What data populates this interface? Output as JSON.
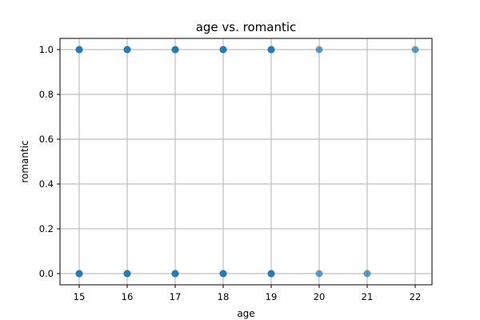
{
  "chart_data": {
    "type": "scatter",
    "title": "age vs. romantic",
    "xlabel": "age",
    "ylabel": "romantic",
    "xlim": [
      14.6,
      22.35
    ],
    "ylim": [
      -0.05,
      1.05
    ],
    "xticks": [
      15,
      16,
      17,
      18,
      19,
      20,
      21,
      22
    ],
    "yticks": [
      0.0,
      0.2,
      0.4,
      0.6,
      0.8,
      1.0
    ],
    "ytick_labels": [
      "0.0",
      "0.2",
      "0.4",
      "0.6",
      "0.8",
      "1.0"
    ],
    "grid": true,
    "marker_color": "#1f77b4",
    "marker_alpha": 0.7,
    "points": [
      {
        "x": 15,
        "y": 1
      },
      {
        "x": 16,
        "y": 1
      },
      {
        "x": 17,
        "y": 1
      },
      {
        "x": 18,
        "y": 1
      },
      {
        "x": 19,
        "y": 1
      },
      {
        "x": 20,
        "y": 1
      },
      {
        "x": 22,
        "y": 1
      },
      {
        "x": 15,
        "y": 0
      },
      {
        "x": 16,
        "y": 0
      },
      {
        "x": 17,
        "y": 0
      },
      {
        "x": 18,
        "y": 0
      },
      {
        "x": 19,
        "y": 0
      },
      {
        "x": 20,
        "y": 0
      },
      {
        "x": 21,
        "y": 0
      }
    ]
  }
}
